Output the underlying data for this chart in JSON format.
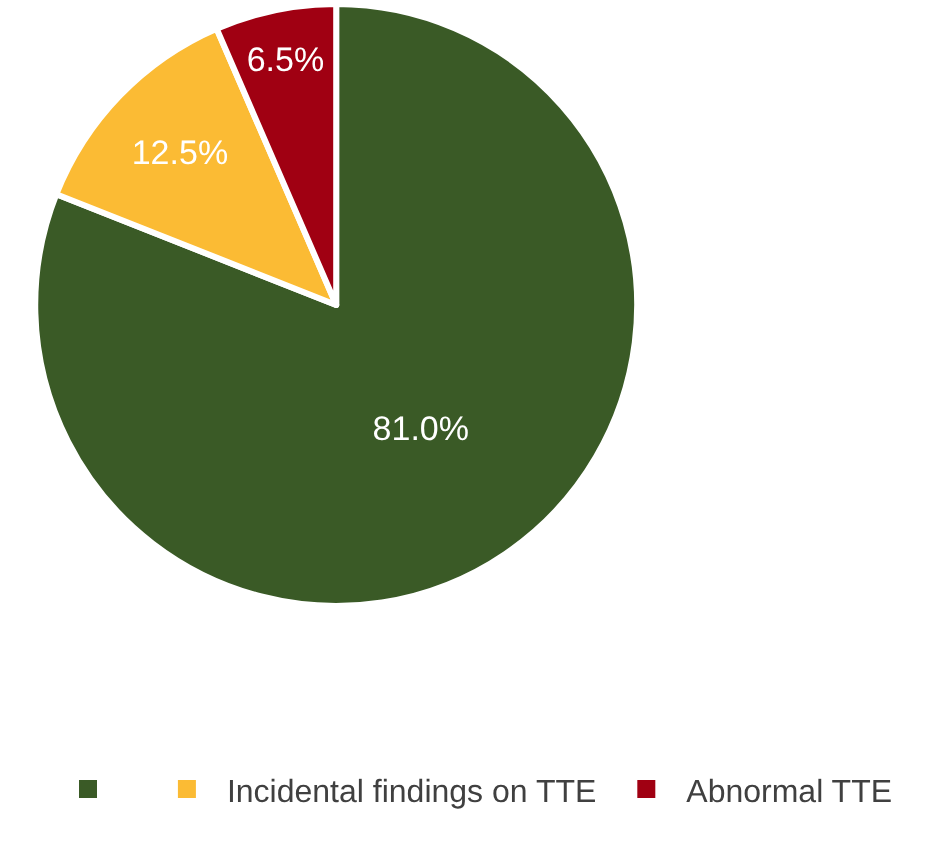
{
  "chart_data": {
    "type": "pie",
    "categories": [
      null,
      "Incidental findings on TTE",
      "Abnormal TTE"
    ],
    "values": [
      81.0,
      12.5,
      6.5
    ],
    "colors": [
      "#3a5a26",
      "#fbbb34",
      "#a00012"
    ],
    "value_labels": [
      "81.0%",
      "12.5%",
      "6.5%"
    ],
    "legend": "bottom"
  }
}
